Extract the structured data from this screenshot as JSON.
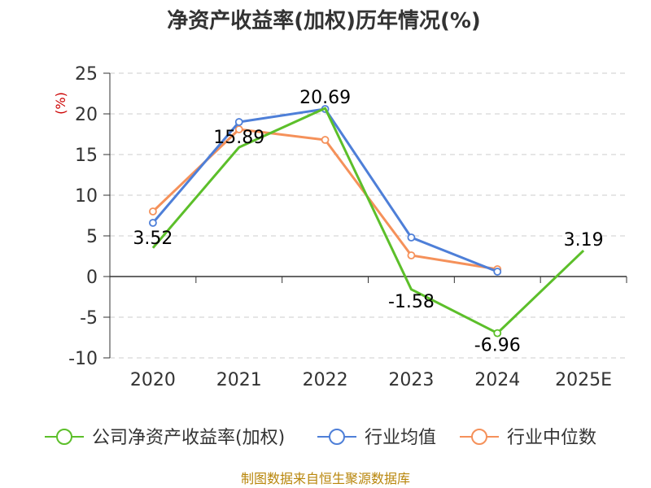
{
  "chart_data": {
    "type": "line",
    "title": "净资产收益率(加权)历年情况(%)",
    "ylabel": "(%)",
    "xlabel": "",
    "categories": [
      "2020",
      "2021",
      "2022",
      "2023",
      "2024",
      "2025E"
    ],
    "yticks": [
      25,
      20,
      15,
      10,
      5,
      0,
      -5,
      -10
    ],
    "ylim": [
      -10,
      25
    ],
    "grid": true,
    "legend_position": "bottom",
    "series": [
      {
        "name": "公司净资产收益率(加权)",
        "color": "#5cbf2a",
        "values": [
          3.52,
          15.89,
          20.69,
          -1.58,
          -6.96,
          3.19
        ],
        "labels": [
          "3.52",
          "15.89",
          "20.69",
          "-1.58",
          "-6.96",
          "3.19"
        ],
        "markers": [
          false,
          false,
          false,
          false,
          true,
          false
        ]
      },
      {
        "name": "行业均值",
        "color": "#4e7fd8",
        "values": [
          6.6,
          19.0,
          20.6,
          4.8,
          0.6,
          null
        ]
      },
      {
        "name": "行业中位数",
        "color": "#f5915a",
        "values": [
          8.0,
          18.1,
          16.8,
          2.6,
          0.9,
          null
        ]
      }
    ]
  },
  "source": "制图数据来自恒生聚源数据库"
}
